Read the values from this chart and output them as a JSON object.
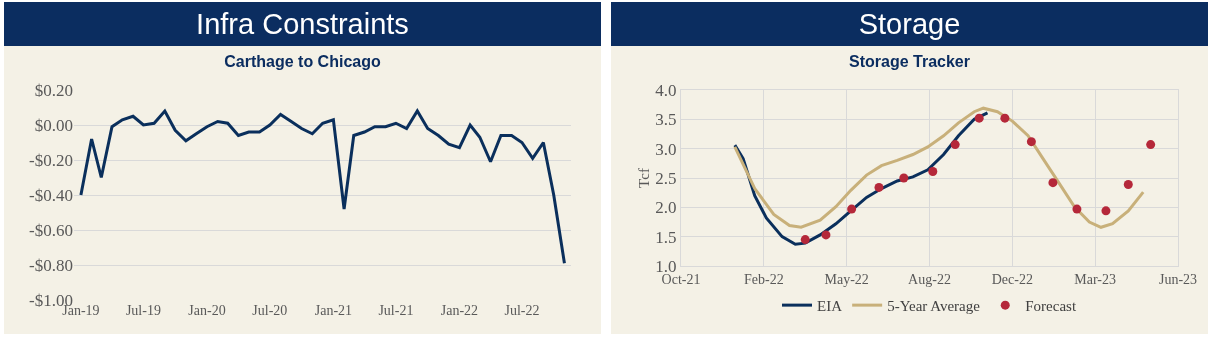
{
  "chart_data": [
    {
      "type": "line",
      "title": "Infra Constraints",
      "subtitle": "Carthage to Chicago",
      "x": [
        "2019-01",
        "2019-02",
        "2019-03",
        "2019-04",
        "2019-05",
        "2019-06",
        "2019-07",
        "2019-08",
        "2019-09",
        "2019-10",
        "2019-11",
        "2019-12",
        "2020-01",
        "2020-02",
        "2020-03",
        "2020-04",
        "2020-05",
        "2020-06",
        "2020-07",
        "2020-08",
        "2020-09",
        "2020-10",
        "2020-11",
        "2020-12",
        "2021-01",
        "2021-02",
        "2021-03",
        "2021-04",
        "2021-05",
        "2021-06",
        "2021-07",
        "2021-08",
        "2021-09",
        "2021-10",
        "2021-11",
        "2021-12",
        "2022-01",
        "2022-02",
        "2022-03",
        "2022-04",
        "2022-05",
        "2022-06",
        "2022-07",
        "2022-08",
        "2022-09",
        "2022-10",
        "2022-11"
      ],
      "series": [
        {
          "color": "#0a2f5c",
          "values": [
            -0.4,
            -0.08,
            -0.3,
            -0.01,
            0.03,
            0.05,
            0.0,
            0.01,
            0.08,
            -0.03,
            -0.09,
            -0.05,
            -0.01,
            0.02,
            0.01,
            -0.06,
            -0.04,
            -0.04,
            0.0,
            0.06,
            0.02,
            -0.02,
            -0.05,
            0.01,
            0.03,
            -0.48,
            -0.06,
            -0.04,
            -0.01,
            -0.01,
            0.01,
            -0.02,
            0.08,
            -0.02,
            -0.06,
            -0.11,
            -0.13,
            0.0,
            -0.07,
            -0.21,
            -0.06,
            -0.06,
            -0.1,
            -0.19,
            -0.1,
            -0.4,
            -0.79
          ]
        }
      ],
      "xlim": [
        "2018-12-12",
        "2022-11-20"
      ],
      "xticks": [
        {
          "value": "2019-01-01",
          "label": "Jan-19"
        },
        {
          "value": "2019-07-01",
          "label": "Jul-19"
        },
        {
          "value": "2020-01-01",
          "label": "Jan-20"
        },
        {
          "value": "2020-07-01",
          "label": "Jul-20"
        },
        {
          "value": "2021-01-01",
          "label": "Jan-21"
        },
        {
          "value": "2021-07-01",
          "label": "Jul-21"
        },
        {
          "value": "2022-01-01",
          "label": "Jan-22"
        },
        {
          "value": "2022-07-01",
          "label": "Jul-22"
        }
      ],
      "ylim": [
        -1.0,
        0.2
      ],
      "yticks": [
        {
          "value": -1.0,
          "label": "-$1.00"
        },
        {
          "value": -0.8,
          "label": "-$0.80"
        },
        {
          "value": -0.6,
          "label": "-$0.60"
        },
        {
          "value": -0.4,
          "label": "-$0.40"
        },
        {
          "value": -0.2,
          "label": "-$0.20"
        },
        {
          "value": 0,
          "label": "$0.00"
        },
        {
          "value": 0.2,
          "label": "$0.20"
        }
      ],
      "grid": "y",
      "legend": false,
      "marker": "none",
      "line_style": "solid"
    },
    {
      "type": "line",
      "title": "Storage",
      "subtitle": "Storage Tracker",
      "ylabel": "Tcf",
      "series": [
        {
          "name": "EIA",
          "color": "#0a2f5c",
          "marker": "none",
          "x": [
            "2022-01-04",
            "2022-01-14",
            "2022-01-28",
            "2022-02-11",
            "2022-03-02",
            "2022-03-18",
            "2022-03-30",
            "2022-04-17",
            "2022-05-06",
            "2022-05-24",
            "2022-06-12",
            "2022-06-30",
            "2022-07-19",
            "2022-08-07",
            "2022-08-25",
            "2022-09-13",
            "2022-10-01",
            "2022-10-20",
            "2022-11-05"
          ],
          "values": [
            3.06,
            2.83,
            2.2,
            1.82,
            1.5,
            1.37,
            1.39,
            1.53,
            1.72,
            1.94,
            2.17,
            2.32,
            2.45,
            2.52,
            2.64,
            2.9,
            3.22,
            3.5,
            3.61
          ]
        },
        {
          "name": "Forecast",
          "type": "scatter",
          "color": "#b5283a",
          "marker": "circle",
          "x": [
            "2022-03-30",
            "2022-04-24",
            "2022-05-25",
            "2022-06-27",
            "2022-07-27",
            "2022-08-31",
            "2022-09-27",
            "2022-10-26",
            "2022-11-26",
            "2022-12-28",
            "2023-01-23",
            "2023-02-21",
            "2023-03-28",
            "2023-04-24",
            "2023-05-21"
          ],
          "values": [
            1.45,
            1.53,
            1.97,
            2.34,
            2.5,
            2.61,
            3.07,
            3.52,
            3.52,
            3.12,
            2.42,
            1.97,
            1.94,
            2.39,
            3.07
          ]
        },
        {
          "name": "5-Year Average",
          "color": "#c8b07a",
          "marker": "none",
          "x": [
            "2022-01-04",
            "2022-01-28",
            "2022-02-20",
            "2022-03-11",
            "2022-03-25",
            "2022-04-17",
            "2022-05-06",
            "2022-05-24",
            "2022-06-12",
            "2022-06-30",
            "2022-07-19",
            "2022-08-07",
            "2022-08-25",
            "2022-09-13",
            "2022-10-01",
            "2022-10-20",
            "2022-10-31",
            "2022-11-17",
            "2022-12-05",
            "2022-12-24",
            "2023-01-11",
            "2023-01-30",
            "2023-02-18",
            "2023-03-08",
            "2023-03-22",
            "2023-04-05",
            "2023-04-24",
            "2023-05-12"
          ],
          "values": [
            3.03,
            2.32,
            1.88,
            1.69,
            1.66,
            1.78,
            2.01,
            2.29,
            2.55,
            2.71,
            2.8,
            2.9,
            3.03,
            3.22,
            3.44,
            3.63,
            3.69,
            3.63,
            3.47,
            3.22,
            2.83,
            2.42,
            2.01,
            1.75,
            1.66,
            1.72,
            1.94,
            2.26
          ]
        }
      ],
      "xlim": [
        "2021-10-31",
        "2023-06-23"
      ],
      "xticks": [
        {
          "value": "2021-10-31",
          "label": "Oct-21"
        },
        {
          "value": "2022-02-08",
          "label": "Feb-22"
        },
        {
          "value": "2022-05-19",
          "label": "May-22"
        },
        {
          "value": "2022-08-27",
          "label": "Aug-22"
        },
        {
          "value": "2022-12-05",
          "label": "Dec-22"
        },
        {
          "value": "2023-03-15",
          "label": "Mar-23"
        },
        {
          "value": "2023-06-23",
          "label": "Jun-23"
        }
      ],
      "ylim": [
        1.0,
        4.0
      ],
      "yticks": [
        {
          "value": 1.0,
          "label": "1.0"
        },
        {
          "value": 1.5,
          "label": "1.5"
        },
        {
          "value": 2.0,
          "label": "2.0"
        },
        {
          "value": 2.5,
          "label": "2.5"
        },
        {
          "value": 3.0,
          "label": "3.0"
        },
        {
          "value": 3.5,
          "label": "3.5"
        },
        {
          "value": 4.0,
          "label": "4.0"
        }
      ],
      "grid": true,
      "legend": "bottom",
      "line_style": "solid"
    }
  ]
}
